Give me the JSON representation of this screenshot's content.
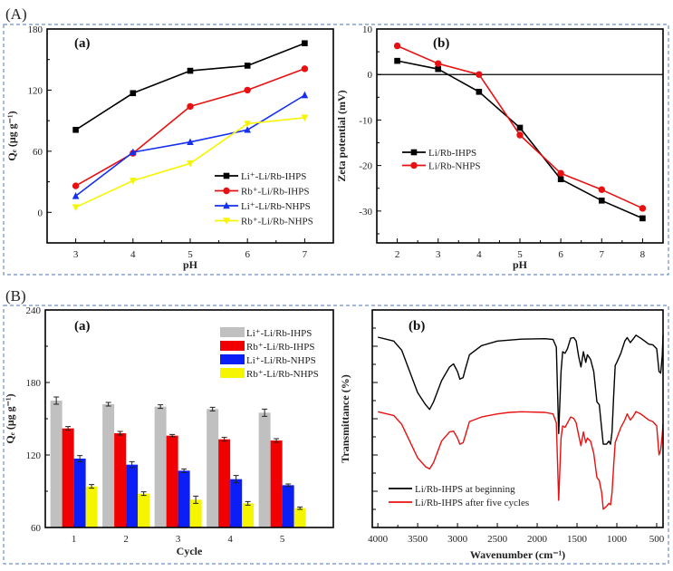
{
  "figure": {
    "section_labels": [
      "(A)",
      "(B)"
    ],
    "frame_color": "#6f8fc8"
  },
  "chart_data": [
    {
      "type": "line",
      "panel_label": "(a)",
      "xlabel": "pH",
      "ylabel": "Qₑ (μg g⁻¹)",
      "x": [
        3,
        4,
        5,
        6,
        7
      ],
      "xlim": [
        2.5,
        7.5
      ],
      "ylim": [
        -30,
        180
      ],
      "xticks": [
        3,
        4,
        5,
        6,
        7
      ],
      "yticks": [
        0,
        60,
        120,
        180
      ],
      "legend": "bottom-right",
      "series": [
        {
          "name": "Li⁺-Li/Rb-IHPS",
          "color": "#000000",
          "marker": "square",
          "values": [
            81,
            117,
            139,
            144,
            166
          ]
        },
        {
          "name": "Rb⁺-Li/Rb-IHPS",
          "color": "#e81010",
          "marker": "circle",
          "values": [
            26,
            58,
            104,
            120,
            141
          ]
        },
        {
          "name": "Li⁺-Li/Rb-NHPS",
          "color": "#1530f0",
          "marker": "triangle-up",
          "values": [
            16,
            59,
            69,
            81,
            115
          ]
        },
        {
          "name": "Rb⁺-Li/Rb-NHPS",
          "color": "#f5f500",
          "marker": "triangle-down",
          "values": [
            5,
            31,
            48,
            87,
            93
          ]
        }
      ]
    },
    {
      "type": "line",
      "panel_label": "(b)",
      "xlabel": "pH",
      "ylabel": "Zeta potential (mV)",
      "x": [
        2,
        3,
        4,
        5,
        6,
        7,
        8
      ],
      "xlim": [
        1.5,
        8.5
      ],
      "ylim": [
        -37,
        10
      ],
      "xticks": [
        2,
        3,
        4,
        5,
        6,
        7,
        8
      ],
      "yticks": [
        -30,
        -20,
        -10,
        0,
        10
      ],
      "zero_line": true,
      "legend": "middle-left",
      "series": [
        {
          "name": "Li/Rb-IHPS",
          "color": "#000000",
          "marker": "square",
          "values": [
            3.0,
            1.2,
            -3.8,
            -11.7,
            -23.0,
            -27.7,
            -31.6
          ]
        },
        {
          "name": "Li/Rb-NHPS",
          "color": "#e81010",
          "marker": "circle",
          "values": [
            6.3,
            2.4,
            0.0,
            -13.3,
            -21.7,
            -25.3,
            -29.4
          ]
        }
      ]
    },
    {
      "type": "bar",
      "panel_label": "(a)",
      "xlabel": "Cycle",
      "ylabel": "Qₑ (μg g⁻¹)",
      "categories": [
        "1",
        "2",
        "3",
        "4",
        "5"
      ],
      "ylim": [
        60,
        240
      ],
      "yticks": [
        60,
        120,
        180,
        240
      ],
      "legend": "top-right",
      "series": [
        {
          "name": "Li⁺-Li/Rb-IHPS",
          "color": "#c0c0c0",
          "values": [
            165,
            162,
            160,
            158,
            155
          ],
          "errors": [
            3,
            1.5,
            1.5,
            1.5,
            3
          ]
        },
        {
          "name": "Rb⁺-Li/Rb-IHPS",
          "color": "#f00000",
          "values": [
            142,
            138,
            136,
            133,
            132
          ],
          "errors": [
            1.5,
            1.5,
            1,
            1.5,
            1.5
          ]
        },
        {
          "name": "Li⁺-Li/Rb-NHPS",
          "color": "#0a1ef5",
          "values": [
            117,
            112,
            107,
            100,
            95
          ],
          "errors": [
            2.5,
            2.5,
            1.5,
            3,
            1
          ]
        },
        {
          "name": "Rb⁺-Li/Rb-NHPS",
          "color": "#f5f500",
          "values": [
            94,
            88,
            83,
            80,
            76
          ],
          "errors": [
            1.5,
            1.5,
            3,
            1.5,
            1
          ]
        }
      ]
    },
    {
      "type": "line",
      "panel_label": "(b)",
      "xlabel": "Wavenumber (cm⁻¹)",
      "ylabel": "Transmittance (%)",
      "xlim": [
        4070,
        420
      ],
      "ylim": [
        0,
        100
      ],
      "xticks": [
        4000,
        3500,
        3000,
        2500,
        2000,
        1500,
        1000,
        500
      ],
      "yticks_unlabeled": true,
      "legend": "bottom-left",
      "series": [
        {
          "name": "Li/Rb-IHPS at beginning",
          "color": "#000000",
          "x": [
            4000,
            3800,
            3700,
            3600,
            3500,
            3400,
            3350,
            3300,
            3200,
            3100,
            3050,
            3000,
            2970,
            2930,
            2900,
            2850,
            2700,
            2500,
            2200,
            1900,
            1800,
            1760,
            1730,
            1700,
            1680,
            1650,
            1620,
            1580,
            1540,
            1510,
            1480,
            1450,
            1420,
            1390,
            1370,
            1330,
            1290,
            1250,
            1220,
            1190,
            1170,
            1130,
            1100,
            1080,
            1060,
            1040,
            1020,
            1000,
            950,
            900,
            870,
            830,
            800,
            760,
            700,
            650,
            600,
            550,
            500,
            470,
            450,
            430,
            420
          ],
          "values": [
            87.5,
            85.7,
            81.5,
            71.7,
            62,
            56.4,
            54.3,
            57.8,
            67.5,
            73.8,
            75.2,
            71.7,
            68.2,
            68.9,
            73.1,
            79.4,
            83.6,
            85.7,
            86.6,
            86.8,
            86.4,
            82.9,
            43.2,
            71.7,
            80.8,
            80.1,
            82.2,
            87,
            87.3,
            85.7,
            78.7,
            73.8,
            80.8,
            75.9,
            79.4,
            77.3,
            71.7,
            57.8,
            56.4,
            45.3,
            38.3,
            38.3,
            39.7,
            38.3,
            43.9,
            60.6,
            74.5,
            75.9,
            80.1,
            85.7,
            87.3,
            85,
            86.4,
            88.4,
            87,
            85.7,
            84.3,
            84,
            82.2,
            71.7,
            71,
            78.7,
            88.4
          ]
        },
        {
          "name": "Li/Rb-IHPS after five cycles",
          "color": "#e81010",
          "x": [
            4000,
            3800,
            3700,
            3600,
            3500,
            3400,
            3350,
            3300,
            3200,
            3100,
            3050,
            3000,
            2970,
            2930,
            2900,
            2850,
            2700,
            2500,
            2350,
            2200,
            1900,
            1800,
            1760,
            1730,
            1700,
            1680,
            1650,
            1620,
            1580,
            1540,
            1510,
            1480,
            1450,
            1420,
            1390,
            1370,
            1330,
            1290,
            1250,
            1220,
            1190,
            1170,
            1130,
            1100,
            1080,
            1060,
            1040,
            1020,
            1000,
            950,
            900,
            870,
            830,
            800,
            760,
            700,
            650,
            600,
            550,
            500,
            470,
            450,
            430,
            420
          ],
          "values": [
            53.2,
            51.5,
            47.4,
            39.7,
            32,
            27.9,
            26.9,
            29.9,
            39.7,
            43.9,
            44.3,
            41.1,
            38.3,
            39,
            42.5,
            48.7,
            50.8,
            52.2,
            52.9,
            53.2,
            52.9,
            52.2,
            48.1,
            12.5,
            41.1,
            46.7,
            46,
            48.1,
            50.8,
            50.1,
            48.1,
            42.5,
            37.6,
            43.9,
            39,
            41.1,
            39.7,
            34.1,
            23,
            21.6,
            16,
            8.4,
            9.7,
            11.1,
            10.4,
            16,
            28.6,
            39,
            41.1,
            46,
            49.4,
            52.2,
            49.4,
            50.8,
            53.3,
            52.2,
            50.8,
            49.4,
            48.7,
            46.7,
            33.4,
            35.5,
            42.5,
            47.4
          ]
        }
      ]
    }
  ]
}
